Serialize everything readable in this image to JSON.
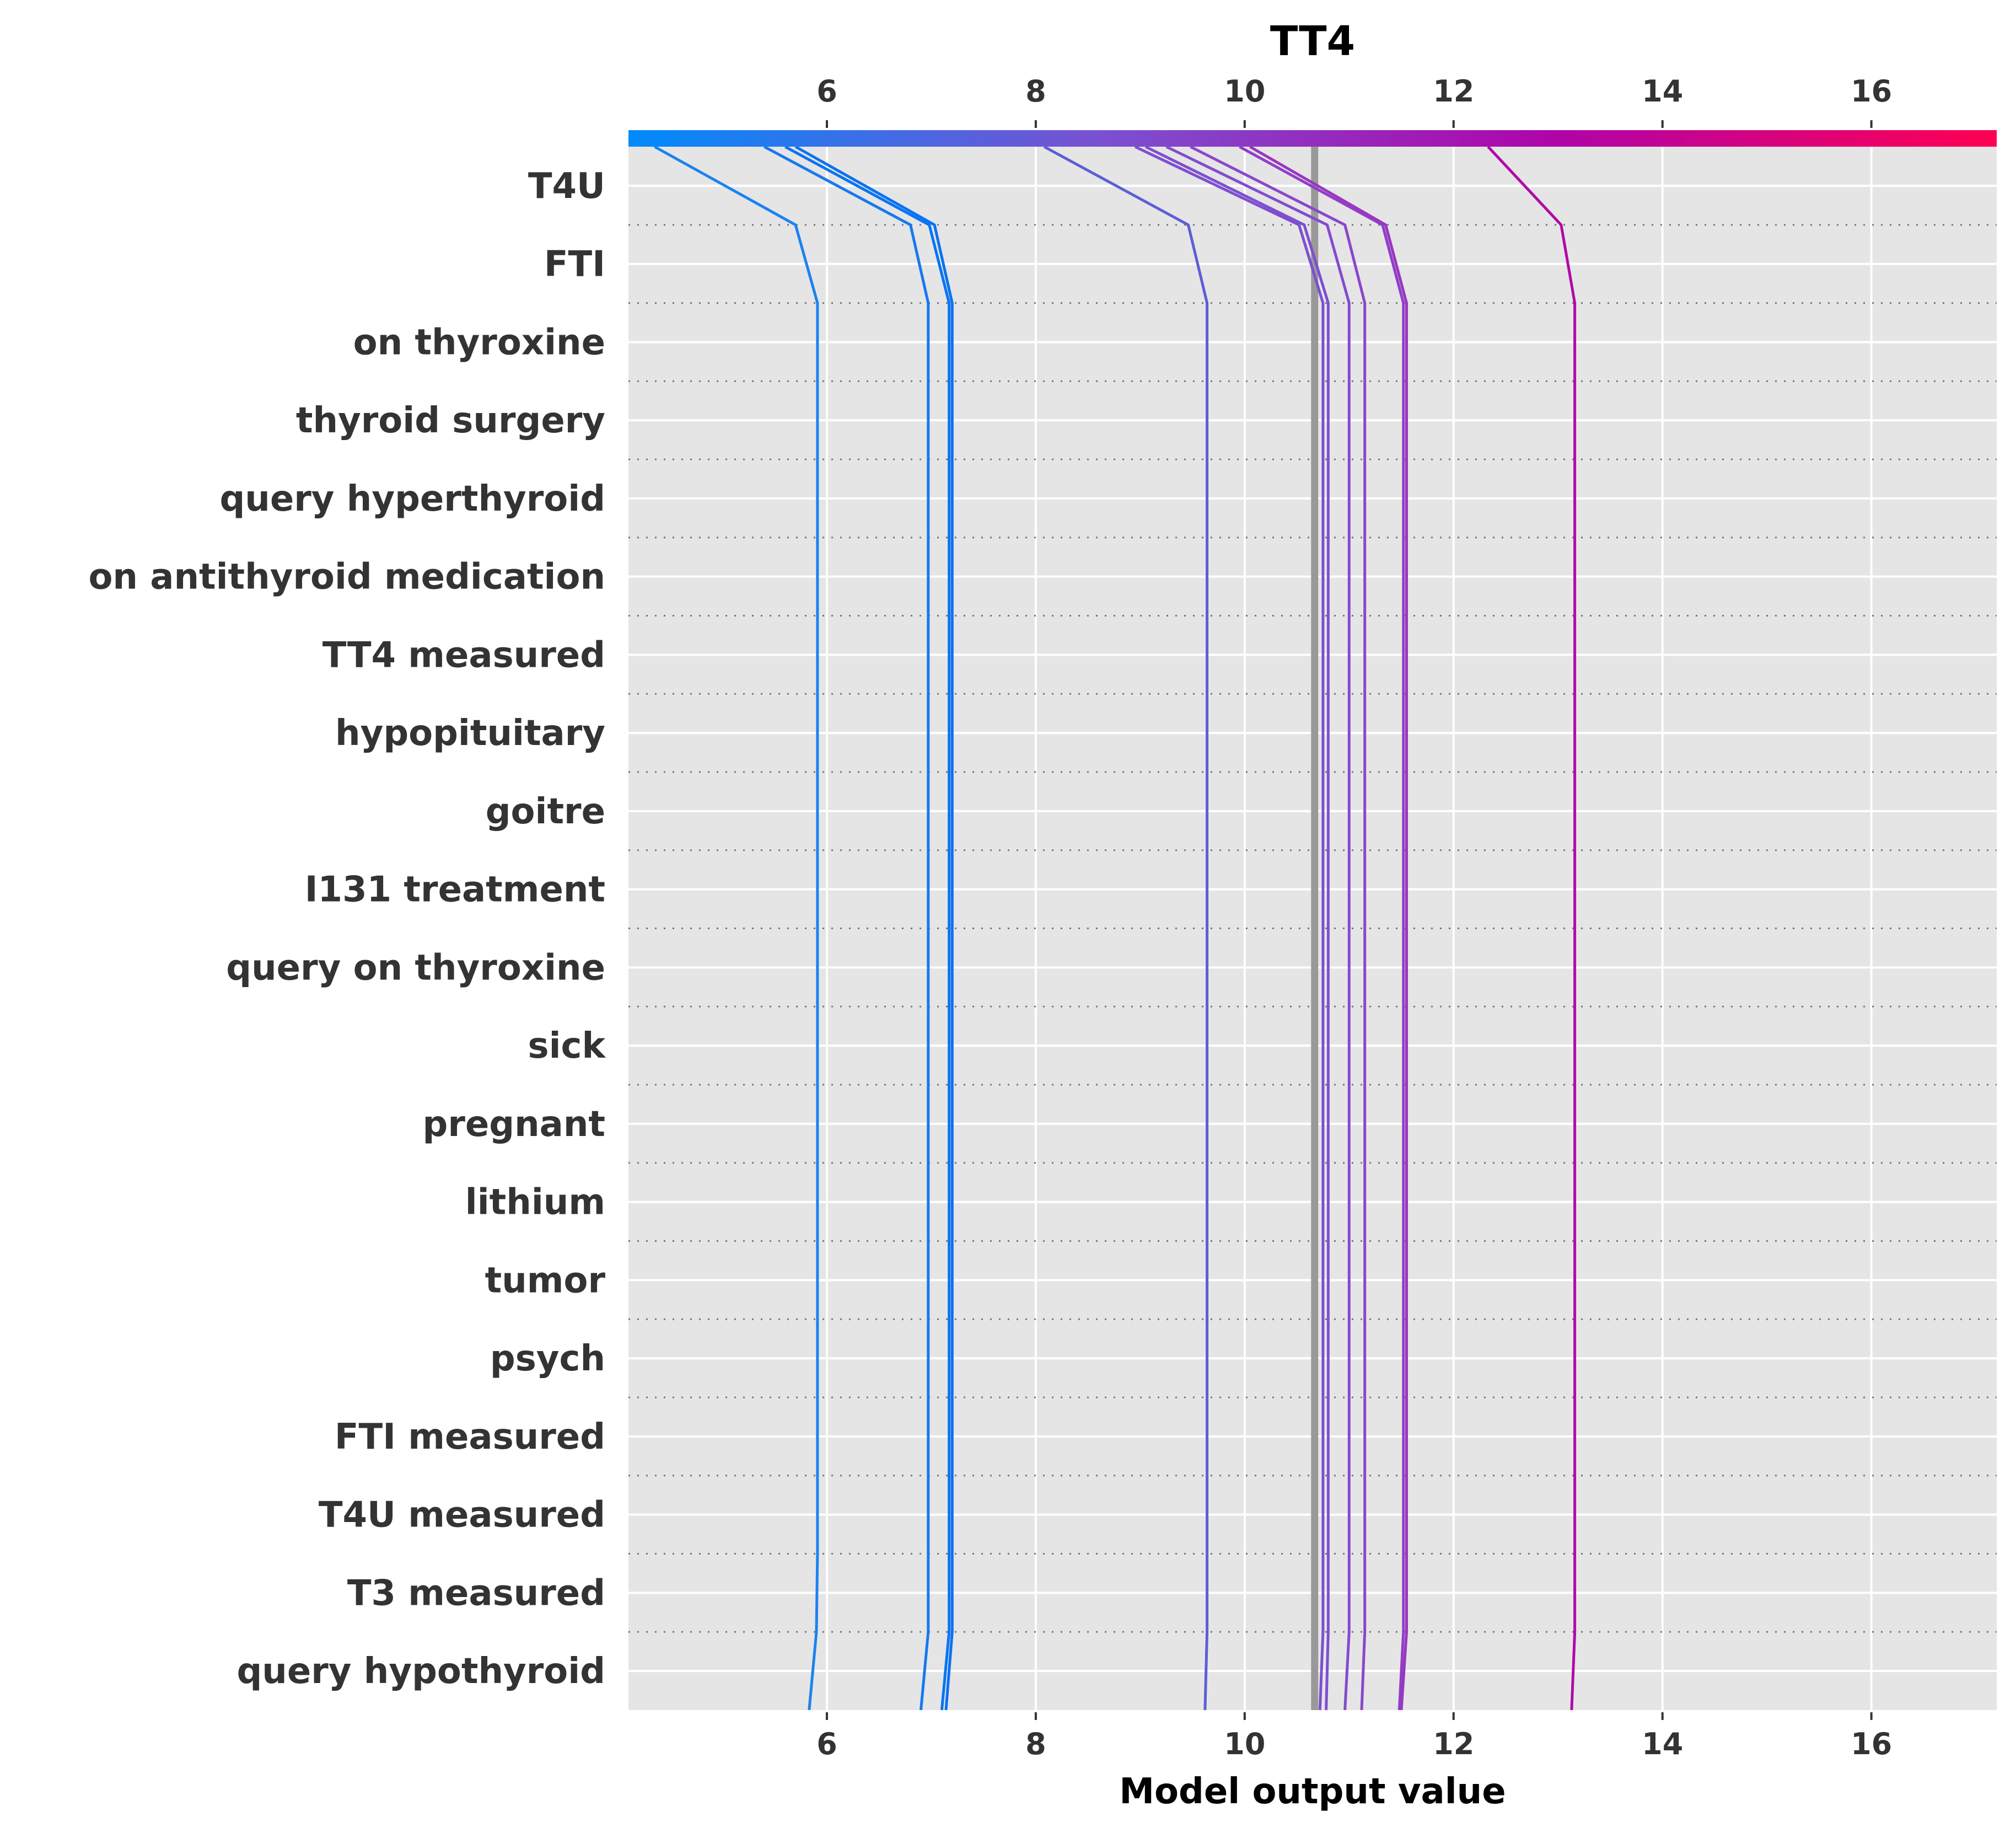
{
  "chart_data": {
    "type": "line",
    "subtype": "shap-decision-plot",
    "title": "TT4",
    "xlabel": "Model output value",
    "xlim": [
      4.1,
      17.2
    ],
    "xticks": [
      6,
      8,
      10,
      12,
      14,
      16
    ],
    "x_tick_labels": [
      "6",
      "8",
      "10",
      "12",
      "14",
      "16"
    ],
    "base_value": 10.67,
    "grid": true,
    "colorbar": {
      "position": "top",
      "colors": [
        "#008bfb",
        "#7b50d0",
        "#b004a8",
        "#ff0052"
      ]
    },
    "features": [
      "T4U",
      "FTI",
      "on thyroxine",
      "thyroid surgery",
      "query hyperthyroid",
      "on antithyroid medication",
      "TT4 measured",
      "hypopituitary",
      "goitre",
      "I131 treatment",
      "query on thyroxine",
      "sick",
      "pregnant",
      "lithium",
      "tumor",
      "psych",
      "FTI measured",
      "T4U measured",
      "T3 measured",
      "query hypothyroid"
    ],
    "series": [
      {
        "color": "#1c82f0",
        "values": [
          5.83,
          5.9,
          5.91,
          5.91,
          5.91,
          5.91,
          5.91,
          5.91,
          5.91,
          5.91,
          5.91,
          5.91,
          5.91,
          5.91,
          5.91,
          5.91,
          5.91,
          5.91,
          5.91,
          5.7,
          4.35
        ]
      },
      {
        "color": "#1778f0",
        "values": [
          6.9,
          6.97,
          6.97,
          6.97,
          6.97,
          6.97,
          6.97,
          6.97,
          6.97,
          6.97,
          6.97,
          6.97,
          6.97,
          6.97,
          6.97,
          6.97,
          6.97,
          6.97,
          6.97,
          6.8,
          5.4
        ]
      },
      {
        "color": "#0a74f2",
        "values": [
          7.1,
          7.17,
          7.17,
          7.17,
          7.17,
          7.17,
          7.17,
          7.17,
          7.17,
          7.17,
          7.17,
          7.17,
          7.17,
          7.17,
          7.17,
          7.17,
          7.17,
          7.17,
          7.17,
          6.98,
          5.6
        ]
      },
      {
        "color": "#0a72f2",
        "values": [
          7.14,
          7.2,
          7.2,
          7.2,
          7.2,
          7.2,
          7.2,
          7.2,
          7.2,
          7.2,
          7.2,
          7.2,
          7.2,
          7.2,
          7.2,
          7.2,
          7.2,
          7.2,
          7.2,
          7.03,
          5.7
        ]
      },
      {
        "color": "#5d5ed6",
        "values": [
          9.62,
          9.64,
          9.64,
          9.64,
          9.64,
          9.64,
          9.64,
          9.64,
          9.64,
          9.64,
          9.64,
          9.64,
          9.64,
          9.64,
          9.64,
          9.64,
          9.64,
          9.64,
          9.64,
          9.46,
          8.08
        ]
      },
      {
        "color": "#7d4fd0",
        "values": [
          10.72,
          10.75,
          10.75,
          10.75,
          10.75,
          10.75,
          10.75,
          10.75,
          10.75,
          10.75,
          10.75,
          10.75,
          10.75,
          10.75,
          10.75,
          10.75,
          10.75,
          10.75,
          10.75,
          10.52,
          8.95
        ]
      },
      {
        "color": "#7d4fd0",
        "values": [
          10.78,
          10.8,
          10.8,
          10.8,
          10.8,
          10.8,
          10.8,
          10.8,
          10.8,
          10.8,
          10.8,
          10.8,
          10.8,
          10.8,
          10.8,
          10.8,
          10.8,
          10.8,
          10.8,
          10.57,
          9.05
        ]
      },
      {
        "color": "#834bcf",
        "values": [
          10.96,
          11.0,
          11.0,
          11.0,
          11.0,
          11.0,
          11.0,
          11.0,
          11.0,
          11.0,
          11.0,
          11.0,
          11.0,
          11.0,
          11.0,
          11.0,
          11.0,
          11.0,
          11.0,
          10.79,
          9.25
        ]
      },
      {
        "color": "#8a46cc",
        "values": [
          11.12,
          11.15,
          11.15,
          11.15,
          11.15,
          11.15,
          11.15,
          11.15,
          11.15,
          11.15,
          11.15,
          11.15,
          11.15,
          11.15,
          11.15,
          11.15,
          11.15,
          11.15,
          11.15,
          10.96,
          9.48
        ]
      },
      {
        "color": "#8f3fc8",
        "values": [
          11.48,
          11.52,
          11.52,
          11.52,
          11.52,
          11.52,
          11.52,
          11.52,
          11.52,
          11.52,
          11.52,
          11.52,
          11.52,
          11.52,
          11.52,
          11.52,
          11.52,
          11.52,
          11.52,
          11.32,
          9.95
        ]
      },
      {
        "color": "#9a36c0",
        "values": [
          11.5,
          11.55,
          11.55,
          11.55,
          11.55,
          11.55,
          11.55,
          11.55,
          11.55,
          11.55,
          11.55,
          11.55,
          11.55,
          11.55,
          11.55,
          11.55,
          11.55,
          11.55,
          11.55,
          11.35,
          10.05
        ]
      },
      {
        "color": "#b00aa8",
        "values": [
          13.13,
          13.16,
          13.16,
          13.16,
          13.16,
          13.16,
          13.16,
          13.16,
          13.16,
          13.16,
          13.16,
          13.16,
          13.16,
          13.16,
          13.16,
          13.16,
          13.16,
          13.16,
          13.16,
          13.03,
          12.33
        ]
      }
    ]
  }
}
